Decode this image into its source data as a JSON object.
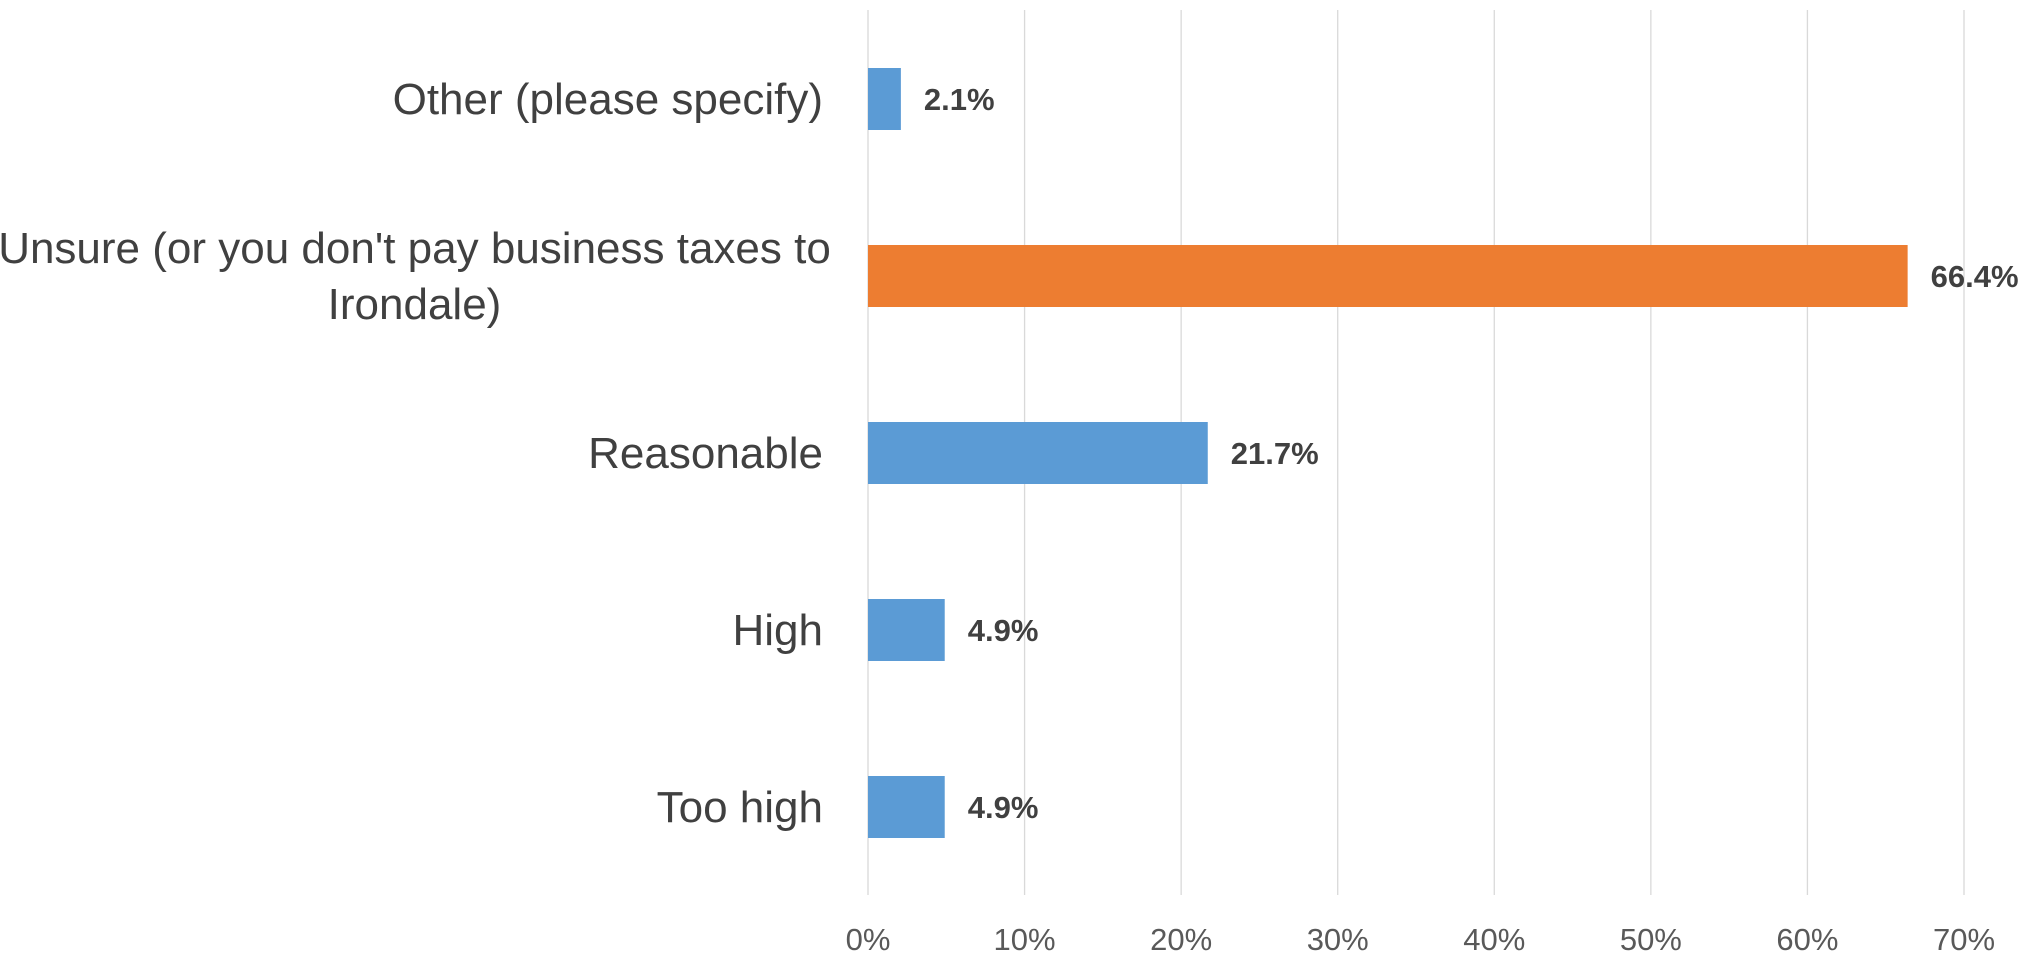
{
  "chart_data": {
    "type": "bar",
    "orientation": "horizontal",
    "categories": [
      [
        "Other (please specify)"
      ],
      [
        "Unsure (or you don't pay business taxes to",
        "Irondale)"
      ],
      [
        "Reasonable"
      ],
      [
        "High"
      ],
      [
        "Too high"
      ]
    ],
    "values": [
      2.1,
      66.4,
      21.7,
      4.9,
      4.9
    ],
    "data_labels": [
      "2.1%",
      "66.4%",
      "21.7%",
      "4.9%",
      "4.9%"
    ],
    "colors": [
      "#5b9bd5",
      "#ed7d31",
      "#5b9bd5",
      "#5b9bd5",
      "#5b9bd5"
    ],
    "xlim": [
      0,
      70
    ],
    "x_ticks": [
      0,
      10,
      20,
      30,
      40,
      50,
      60,
      70
    ],
    "x_tick_labels": [
      "0%",
      "10%",
      "20%",
      "30%",
      "40%",
      "50%",
      "60%",
      "70%"
    ],
    "grid": true,
    "legend": "none"
  }
}
